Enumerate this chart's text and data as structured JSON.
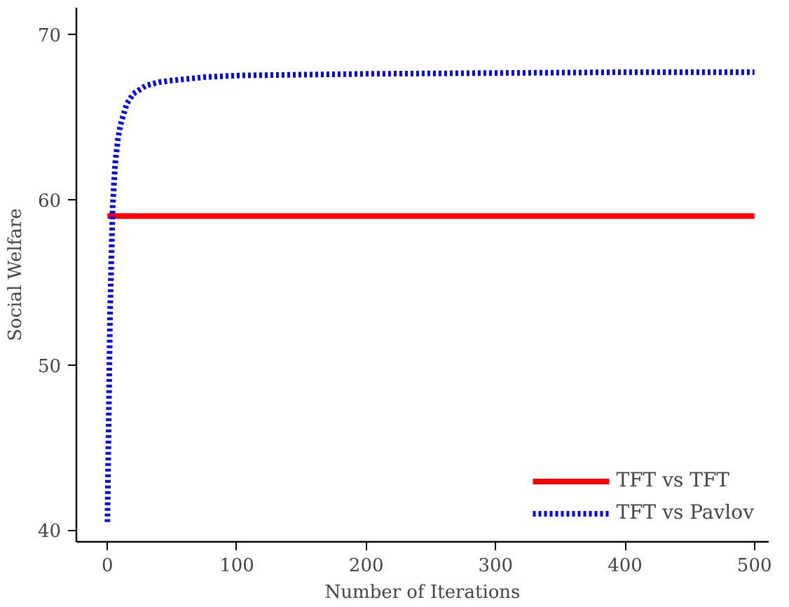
{
  "chart_data": {
    "type": "line",
    "xlabel": "Number of Iterations",
    "ylabel": "Social Welfare",
    "xlim": [
      -24,
      511
    ],
    "ylim": [
      39.3,
      71.6
    ],
    "xticks": [
      0,
      100,
      200,
      300,
      400,
      500
    ],
    "yticks": [
      40,
      50,
      60,
      70
    ],
    "grid": false,
    "legend": "bottom right",
    "series": [
      {
        "name": "TFT vs TFT",
        "color": "#ff0000",
        "line_style": "solid",
        "x": [
          0,
          500
        ],
        "values": [
          59.0,
          59.0
        ]
      },
      {
        "name": "TFT vs Pavlov",
        "color": "#0000ff",
        "line_style": "dotted",
        "x": [
          0,
          2,
          4,
          6,
          8,
          10,
          15,
          20,
          30,
          40,
          50,
          75,
          100,
          150,
          200,
          300,
          400,
          500
        ],
        "values": [
          40.5,
          53,
          59.5,
          62.2,
          63.6,
          64.5,
          65.8,
          66.4,
          66.9,
          67.1,
          67.2,
          67.4,
          67.5,
          67.55,
          67.6,
          67.65,
          67.7,
          67.7
        ]
      }
    ]
  }
}
